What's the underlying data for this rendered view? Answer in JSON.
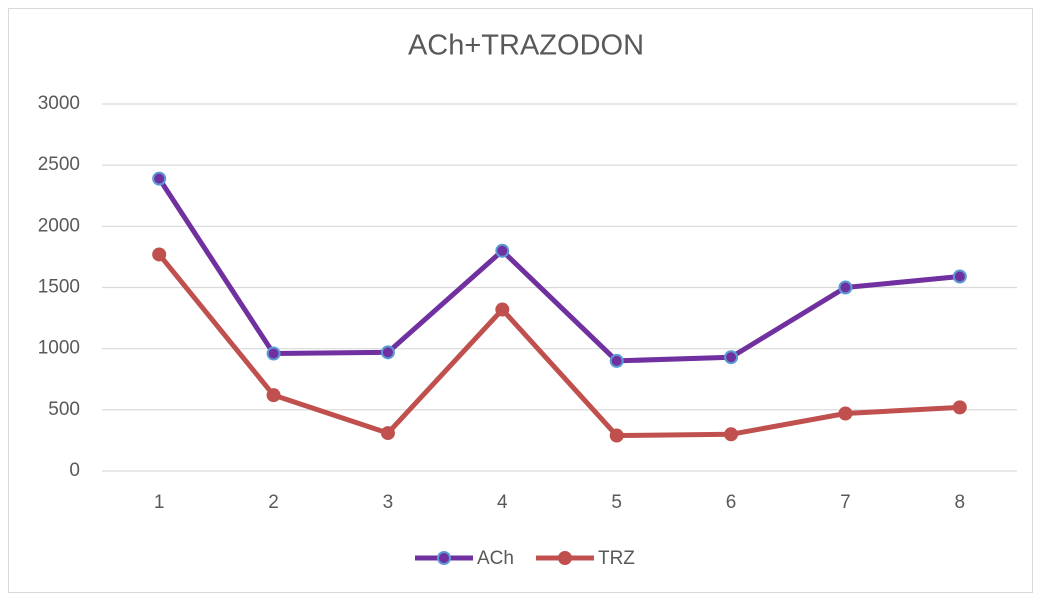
{
  "chart_data": {
    "type": "line",
    "title": "ACh+TRAZODON",
    "categories": [
      "1",
      "2",
      "3",
      "4",
      "5",
      "6",
      "7",
      "8"
    ],
    "series": [
      {
        "name": "ACh",
        "color": "#7030a0",
        "marker_edge": "#5b9bd5",
        "values": [
          2390,
          960,
          970,
          1800,
          900,
          930,
          1500,
          1590
        ]
      },
      {
        "name": "TRZ",
        "color": "#c0504d",
        "values": [
          1770,
          620,
          310,
          1320,
          290,
          300,
          470,
          520
        ]
      }
    ],
    "ylim": [
      0,
      3000
    ],
    "yticks": [
      0,
      500,
      1000,
      1500,
      2000,
      2500,
      3000
    ],
    "grid": true,
    "legend": "bottom"
  }
}
